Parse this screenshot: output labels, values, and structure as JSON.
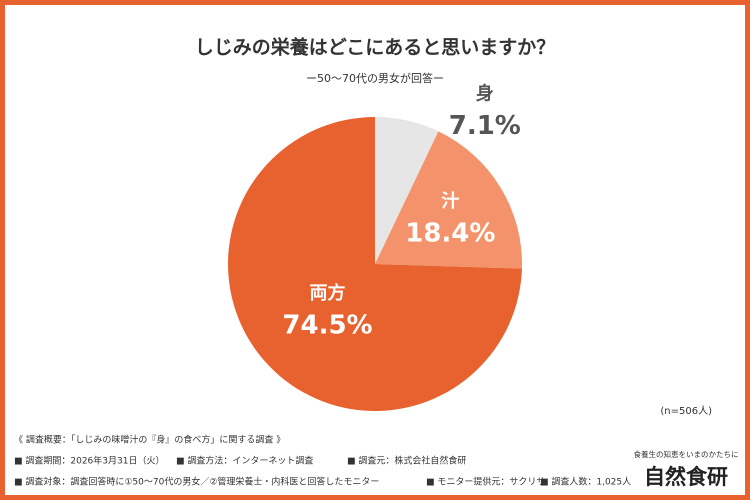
{
  "chart_data": {
    "type": "pie",
    "title": "しじみの栄養はどこにあると思いますか？",
    "subtitle": "ー50〜70代の男女が回答ー",
    "categories": [
      "身",
      "汁",
      "両方"
    ],
    "values": [
      7.1,
      18.4,
      74.5
    ],
    "value_labels": [
      "7.1%",
      "18.4%",
      "74.5%"
    ],
    "colors": [
      "#e6e6e6",
      "#f4936b",
      "#e8622f"
    ],
    "note": "(n=506人)"
  },
  "footer": {
    "heading": "《 調査概要：「しじみの味噌汁の『身』の食べ方」に関する調査 》",
    "rows": [
      [
        "■ 調査期間：2026年3月31日（火）",
        "■ 調査方法：インターネット調査",
        "■ 調査元：株式会社自然食研"
      ],
      [
        "■ 調査対象：調査回答時に①50〜70代の男女／②管理栄養士・内科医と回答したモニター",
        "■ モニター提供元：サクリサ",
        "■ 調査人数：1,025人"
      ]
    ]
  },
  "logo": {
    "tagline": "食養生の知恵をいまのかたちに",
    "name": "自然食研"
  }
}
